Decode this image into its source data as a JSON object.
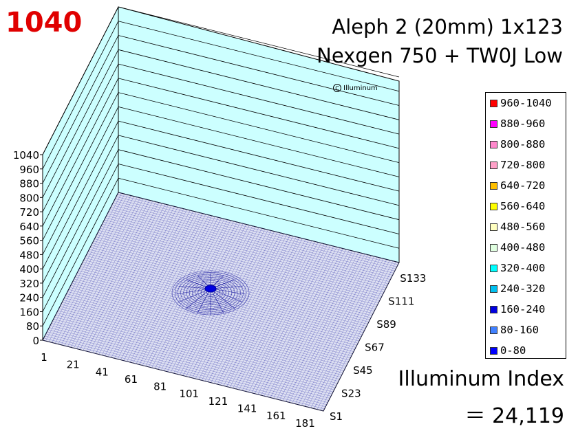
{
  "peak_label": "1040",
  "title_line1": "Aleph 2 (20mm) 1x123",
  "title_line2": "Nexgen 750 + TW0J Low",
  "brand": {
    "icon": "copyright-circle-icon",
    "glyph": "C",
    "label": "Illuminum"
  },
  "legend": [
    {
      "label": "960-1040",
      "color": "#ff0000"
    },
    {
      "label": "880-960",
      "color": "#ff00ff"
    },
    {
      "label": "800-880",
      "color": "#ff88cc"
    },
    {
      "label": "720-800",
      "color": "#ffa0c8"
    },
    {
      "label": "640-720",
      "color": "#ffc000"
    },
    {
      "label": "560-640",
      "color": "#ffff00"
    },
    {
      "label": "480-560",
      "color": "#ffffc0"
    },
    {
      "label": "400-480",
      "color": "#e0ffe0"
    },
    {
      "label": "320-400",
      "color": "#00ffff"
    },
    {
      "label": "240-320",
      "color": "#00c0f0"
    },
    {
      "label": "160-240",
      "color": "#0000e0"
    },
    {
      "label": "80-160",
      "color": "#4080ff"
    },
    {
      "label": "0-80",
      "color": "#0000ff"
    }
  ],
  "index_label": "Illuminum Index",
  "index_value": "＝ 24,119",
  "chart_data": {
    "type": "surface",
    "title": "Aleph 2 (20mm) 1x123",
    "subtitle": "Nexgen 750 + TW0J Low",
    "z_ticks": [
      "1040",
      "960",
      "880",
      "800",
      "720",
      "640",
      "560",
      "480",
      "400",
      "320",
      "240",
      "160",
      "80",
      "0"
    ],
    "zlim": [
      0,
      1040
    ],
    "x_ticks": [
      "1",
      "21",
      "41",
      "61",
      "81",
      "101",
      "121",
      "141",
      "161",
      "181"
    ],
    "y_ticks": [
      "S1",
      "S23",
      "S45",
      "S67",
      "S89",
      "S111",
      "S133"
    ],
    "peak_value": 1040,
    "colors": {
      "wall": "#ccffff",
      "mesh": "#0000cc"
    }
  }
}
